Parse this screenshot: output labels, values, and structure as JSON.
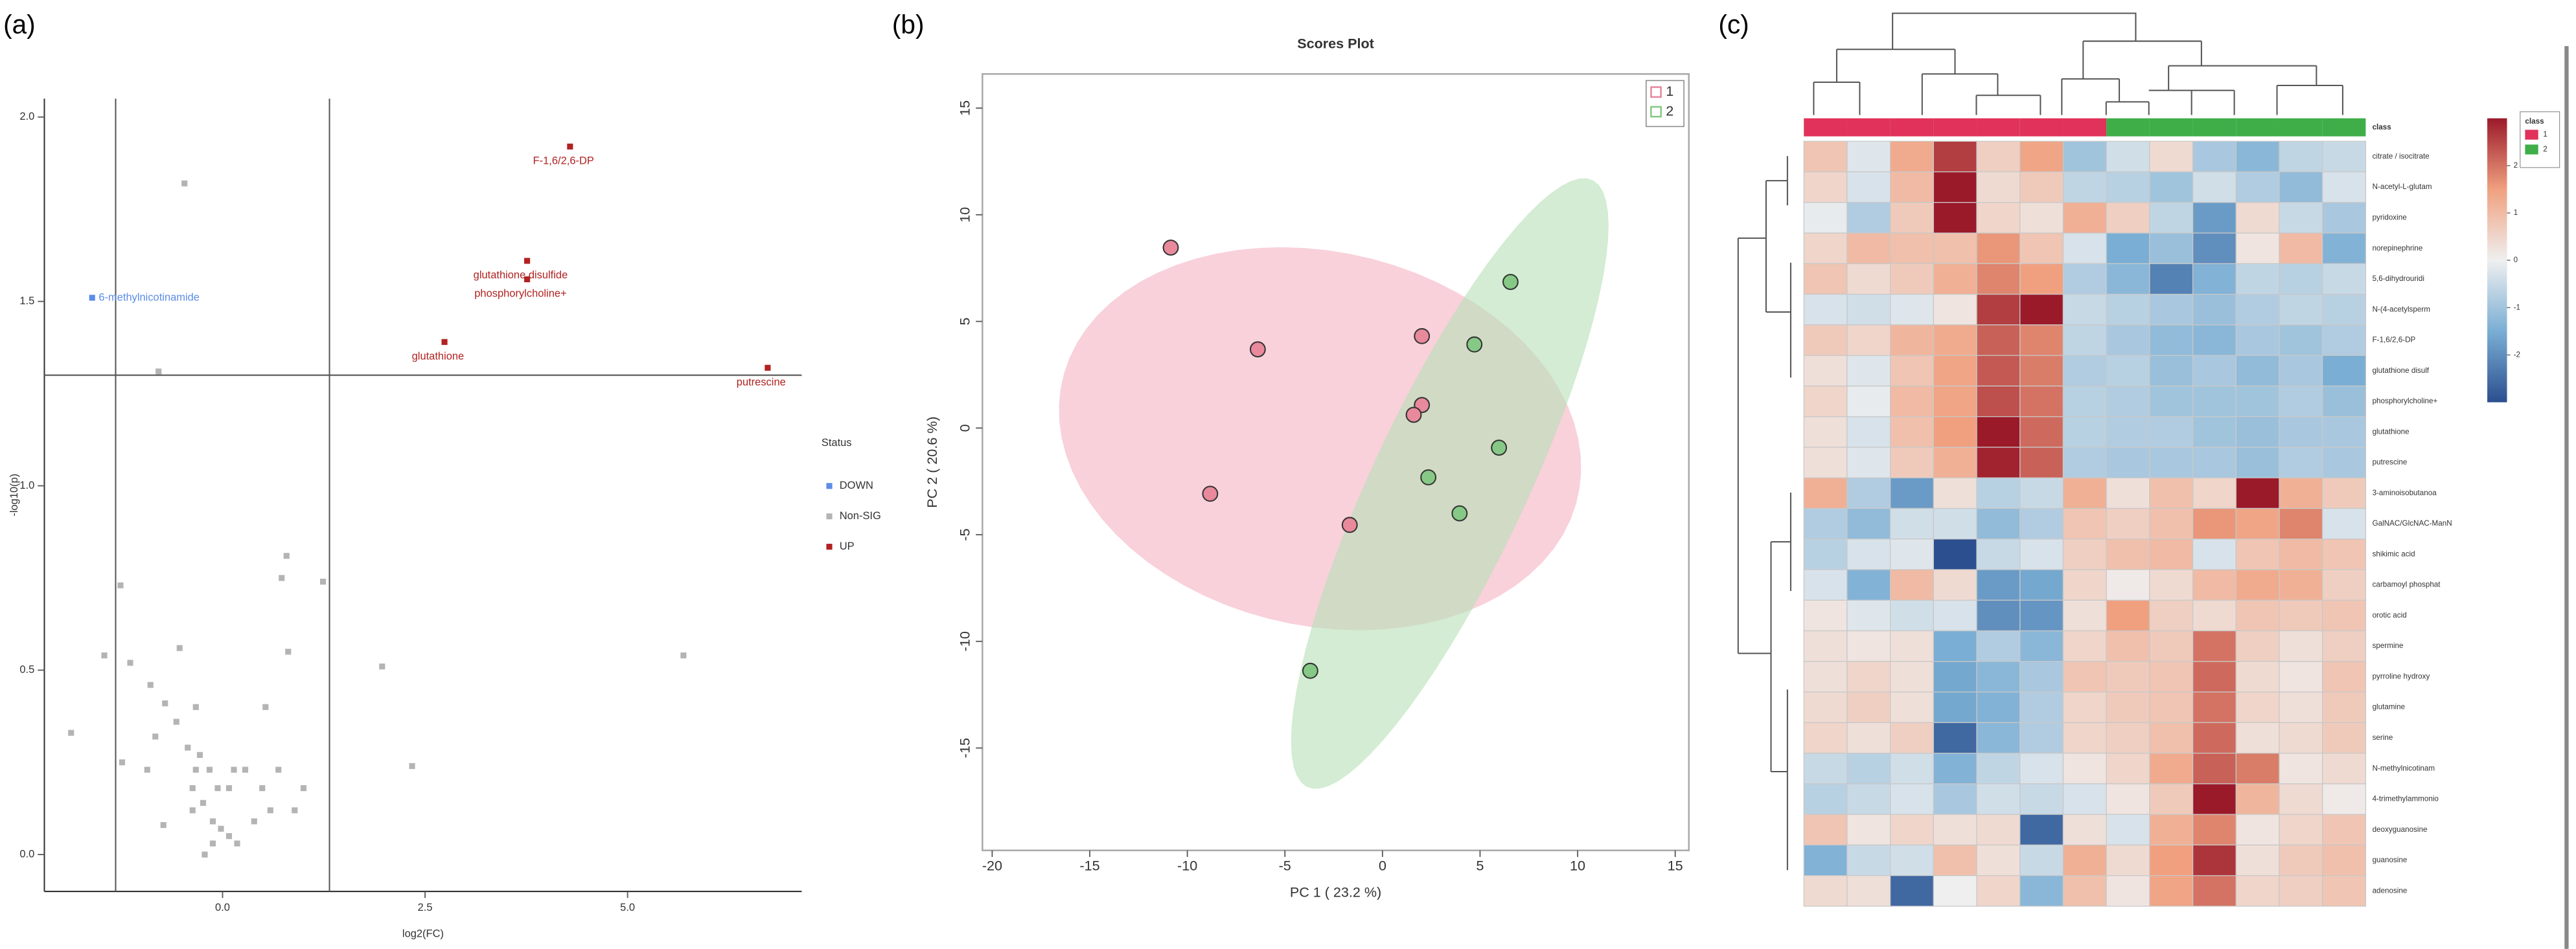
{
  "chart_data": [
    {
      "type": "scatter",
      "panel_label": "(a)",
      "xlabel": "log2(FC)",
      "ylabel": "-log10(p)",
      "xlim": [
        -2.2,
        7.15
      ],
      "ylim": [
        -0.1,
        2.05
      ],
      "xticks": [
        {
          "value": 0,
          "label": "0.0"
        },
        2.5,
        {
          "value": 5,
          "label": "5.0"
        }
      ],
      "yticks": [
        {
          "value": 0,
          "label": "0.0"
        },
        0.5,
        {
          "value": 1,
          "label": "1.0"
        },
        1.5,
        {
          "value": 2,
          "label": "2.0"
        }
      ],
      "vlines": [
        -1.32,
        1.32
      ],
      "hlines": [
        1.3
      ],
      "legend_title": "Status",
      "series": [
        {
          "name": "DOWN",
          "color": "#5b8de8",
          "x": [
            -1.61
          ],
          "values": [
            1.51
          ],
          "labels": [
            "6-methylnicotinamide"
          ]
        },
        {
          "name": "Non-SIG",
          "color": "#b4b4b4",
          "x": [
            -0.47,
            -0.79,
            -1.87,
            -1.46,
            -1.26,
            0.79,
            0.73,
            1.24,
            0.81,
            0.53,
            1.97,
            2.34,
            5.69,
            -1.14,
            -0.89,
            -0.71,
            -0.57,
            -0.43,
            -0.33,
            -0.37,
            -0.24,
            -0.12,
            -0.02,
            0.08,
            0.18,
            -0.12,
            -0.22,
            -0.73,
            -0.93,
            -1.24,
            0.28,
            0.49,
            0.69,
            0.89,
            1.0,
            -0.53,
            -0.33,
            -0.83,
            0.08,
            0.39,
            0.59,
            -0.16,
            -0.06,
            -0.28,
            -0.37,
            0.14
          ],
          "values": [
            1.82,
            1.31,
            0.33,
            0.54,
            0.73,
            0.81,
            0.75,
            0.74,
            0.55,
            0.4,
            0.51,
            0.24,
            0.54,
            0.52,
            0.46,
            0.41,
            0.36,
            0.29,
            0.23,
            0.18,
            0.14,
            0.09,
            0.07,
            0.05,
            0.03,
            0.03,
            0,
            0.08,
            0.23,
            0.25,
            0.23,
            0.18,
            0.23,
            0.12,
            0.18,
            0.56,
            0.4,
            0.32,
            0.18,
            0.09,
            0.12,
            0.23,
            0.18,
            0.27,
            0.12,
            0.23
          ]
        },
        {
          "name": "UP",
          "color": "#b22222",
          "x": [
            4.29,
            3.76,
            3.76,
            2.74,
            6.73
          ],
          "values": [
            1.92,
            1.61,
            1.56,
            1.39,
            1.32
          ],
          "labels": [
            "F-1,6/2,6-DP",
            "glutathione disulfide",
            "phosphorylcholine+",
            "glutathione",
            "putrescine"
          ]
        }
      ]
    },
    {
      "type": "scatter",
      "panel_label": "(b)",
      "title": "Scores Plot",
      "xlabel": "PC 1 ( 23.2 %)",
      "ylabel": "PC 2 ( 20.6 %)",
      "xlim": [
        -20.5,
        15.7
      ],
      "ylim": [
        -19.8,
        16.6
      ],
      "xticks": [
        -20,
        -15,
        -10,
        -5,
        0,
        5,
        10,
        15
      ],
      "yticks": [
        -15,
        -10,
        -5,
        0,
        5,
        10,
        15
      ],
      "series": [
        {
          "name": "1",
          "color": "#e8899c",
          "ellipse_color": "#f5b3c2",
          "x": [
            -10.85,
            -6.39,
            -8.83,
            -1.68,
            2.02,
            2.02,
            1.6
          ],
          "values": [
            8.46,
            3.69,
            -3.08,
            -4.54,
            4.31,
            1.08,
            0.62
          ],
          "ellipse": {
            "cx": -3.2,
            "cy": -0.5,
            "a": 13.5,
            "b": 8.8,
            "angle": -10
          }
        },
        {
          "name": "2",
          "color": "#86c986",
          "ellipse_color": "#b5e0b5",
          "x": [
            6.56,
            4.71,
            5.97,
            2.35,
            3.95,
            -3.7
          ],
          "values": [
            6.85,
            3.92,
            -0.92,
            -2.31,
            -4.0,
            -11.38
          ],
          "ellipse": {
            "cx": 3.45,
            "cy": -2.6,
            "a": 16.0,
            "b": 3.9,
            "angle": 62.6
          }
        }
      ]
    },
    {
      "type": "heatmap",
      "panel_label": "(c)",
      "class_title": "class",
      "classes": [
        {
          "name": "1",
          "color": "#e0325a"
        },
        {
          "name": "2",
          "color": "#3fae49"
        }
      ],
      "column_classes": [
        "1",
        "1",
        "1",
        "1",
        "1",
        "1",
        "1",
        "2",
        "2",
        "2",
        "2",
        "2",
        "2"
      ],
      "clim": [
        -3,
        3
      ],
      "cbar_ticks": [
        -2,
        -1,
        0,
        1,
        2
      ],
      "colorscale": [
        "#2b4f8f",
        "#7aaed4",
        "#efefef",
        "#f0a07f",
        "#9b1a2a"
      ],
      "rows": [
        "citrate / isocitrate",
        "N-acetyl-L-glutam",
        "pyridoxine",
        "norepinephrine",
        "5,6-dihydrouridi",
        "N-(4-acetylsperm",
        "F-1,6/2,6-DP",
        "glutathione disulf",
        "phosphorylcholine+",
        "glutathione",
        "putrescine",
        "3-aminoisobutanoa",
        "GalNAC/GlcNAC-ManN",
        "shikimic acid",
        "carbamoyl phosphat",
        "orotic acid",
        "spermine",
        "pyrroline hydroxy",
        "glutamine",
        "serine",
        "N-methylnicotinam",
        "4-trimethylammonio",
        "deoxyguanosine",
        "guanosine",
        "adenosine"
      ],
      "values": [
        [
          0.8,
          -0.2,
          1.3,
          2.6,
          0.6,
          1.4,
          -1.0,
          -0.4,
          0.4,
          -0.9,
          -1.3,
          -0.6,
          -0.5
        ],
        [
          0.5,
          -0.3,
          1.0,
          3.0,
          0.4,
          0.7,
          -0.6,
          -0.7,
          -1.0,
          -0.4,
          -0.8,
          -1.2,
          -0.3
        ],
        [
          -0.1,
          -0.8,
          0.7,
          3.0,
          0.5,
          0.3,
          1.2,
          0.6,
          -0.6,
          -1.8,
          0.4,
          -0.5,
          -0.9
        ],
        [
          0.5,
          1.0,
          0.9,
          0.9,
          1.6,
          0.8,
          -0.3,
          -1.5,
          -1.1,
          -2.0,
          0.2,
          1.0,
          -1.4
        ],
        [
          0.8,
          0.4,
          0.7,
          1.2,
          1.8,
          1.5,
          -0.8,
          -1.3,
          -2.2,
          -1.4,
          -0.6,
          -0.7,
          -0.5
        ],
        [
          -0.3,
          -0.4,
          -0.2,
          0.2,
          2.6,
          3.0,
          -0.5,
          -0.7,
          -0.9,
          -1.1,
          -0.8,
          -0.6,
          -0.7
        ],
        [
          0.7,
          0.5,
          1.1,
          1.3,
          2.2,
          1.8,
          -0.6,
          -0.9,
          -1.2,
          -1.3,
          -0.9,
          -1.0,
          -0.8
        ],
        [
          0.3,
          -0.2,
          0.8,
          1.4,
          2.3,
          1.9,
          -0.8,
          -0.7,
          -1.1,
          -0.9,
          -1.2,
          -0.9,
          -1.5
        ],
        [
          0.5,
          -0.1,
          1.0,
          1.4,
          2.4,
          2.0,
          -0.7,
          -0.8,
          -1.0,
          -1.0,
          -1.0,
          -0.8,
          -1.1
        ],
        [
          0.3,
          -0.3,
          0.9,
          1.5,
          3.0,
          2.1,
          -0.7,
          -0.8,
          -0.8,
          -1.0,
          -1.1,
          -0.9,
          -0.9
        ],
        [
          0.3,
          -0.2,
          0.7,
          1.2,
          2.9,
          2.2,
          -0.8,
          -0.9,
          -0.9,
          -0.9,
          -1.1,
          -0.8,
          -0.9
        ],
        [
          1.2,
          -0.8,
          -1.8,
          0.3,
          -0.7,
          -0.5,
          1.2,
          0.3,
          0.9,
          0.5,
          3.0,
          1.2,
          0.7
        ],
        [
          -0.8,
          -1.2,
          -0.4,
          -0.4,
          -1.2,
          -0.8,
          0.8,
          0.6,
          0.9,
          1.6,
          1.4,
          1.8,
          -0.3
        ],
        [
          -0.7,
          -0.3,
          -0.2,
          -3.0,
          -0.5,
          -0.3,
          0.6,
          0.9,
          1.0,
          -0.3,
          0.8,
          1.0,
          0.8
        ],
        [
          -0.3,
          -1.4,
          1.0,
          0.4,
          -1.8,
          -1.6,
          0.5,
          0.1,
          0.4,
          1.0,
          1.3,
          1.2,
          0.6
        ],
        [
          0.2,
          -0.2,
          -0.4,
          -0.3,
          -2.0,
          -1.9,
          0.3,
          1.5,
          0.6,
          0.4,
          0.8,
          0.7,
          0.8
        ],
        [
          0.3,
          0.2,
          0.3,
          -1.5,
          -0.8,
          -1.3,
          0.5,
          0.9,
          0.7,
          2.0,
          0.6,
          0.3,
          0.6
        ],
        [
          0.3,
          0.5,
          0.3,
          -1.6,
          -1.3,
          -0.9,
          0.8,
          0.7,
          0.8,
          2.1,
          0.4,
          0.2,
          0.8
        ],
        [
          0.4,
          0.6,
          0.3,
          -1.6,
          -1.4,
          -0.8,
          0.5,
          0.7,
          0.8,
          2.0,
          0.5,
          0.3,
          0.7
        ],
        [
          0.5,
          0.3,
          0.6,
          -2.6,
          -1.3,
          -0.8,
          0.5,
          0.6,
          0.9,
          2.1,
          0.3,
          0.4,
          0.7
        ],
        [
          -0.5,
          -0.7,
          -0.4,
          -1.4,
          -0.6,
          -0.3,
          0.2,
          0.5,
          1.3,
          2.2,
          1.9,
          0.2,
          0.4
        ],
        [
          -0.7,
          -0.5,
          -0.3,
          -0.9,
          -0.4,
          -0.5,
          -0.3,
          0.2,
          0.7,
          3.0,
          1.1,
          0.4,
          0.1
        ],
        [
          0.8,
          0.2,
          0.5,
          0.3,
          0.4,
          -2.6,
          0.3,
          -0.3,
          1.2,
          1.8,
          0.2,
          0.5,
          0.8
        ],
        [
          -1.4,
          -0.5,
          -0.4,
          0.9,
          0.3,
          -0.5,
          1.2,
          0.4,
          1.5,
          2.7,
          0.3,
          0.7,
          0.9
        ],
        [
          0.4,
          0.3,
          -2.6,
          0.0,
          0.5,
          -1.3,
          0.9,
          0.2,
          1.4,
          2.0,
          0.5,
          0.6,
          0.8
        ]
      ]
    }
  ]
}
